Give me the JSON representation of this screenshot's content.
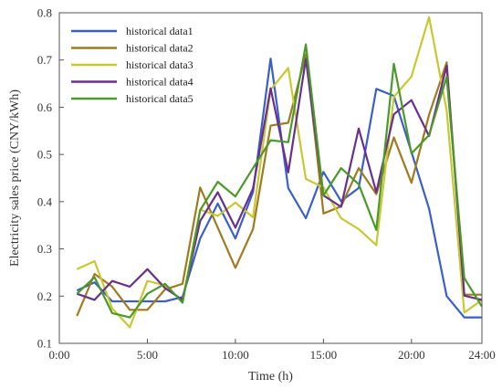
{
  "chart_data": {
    "type": "line",
    "xlabel": "Time (h)",
    "ylabel": "Electricity sales price (CNY/kWh)",
    "xlim": [
      0,
      24
    ],
    "ylim": [
      0.1,
      0.8
    ],
    "x_ticks": [
      0,
      5,
      10,
      15,
      20,
      24
    ],
    "x_tick_labels": [
      "0:00",
      "5:00",
      "10:00",
      "15:00",
      "20:00",
      "24:00"
    ],
    "y_ticks": [
      0.1,
      0.2,
      0.3,
      0.4,
      0.5,
      0.6,
      0.7,
      0.8
    ],
    "y_tick_labels": [
      "0.1",
      "0.2",
      "0.3",
      "0.4",
      "0.5",
      "0.6",
      "0.7",
      "0.8"
    ],
    "grid": false,
    "legend_position": "top-left",
    "x": [
      1,
      2,
      3,
      4,
      5,
      6,
      7,
      8,
      9,
      10,
      11,
      12,
      13,
      14,
      15,
      16,
      17,
      18,
      19,
      20,
      21,
      22,
      23,
      24
    ],
    "series": [
      {
        "name": "historical data1",
        "color": "#3a5fc8",
        "values": [
          0.212,
          0.229,
          0.189,
          0.189,
          0.189,
          0.189,
          0.198,
          0.322,
          0.396,
          0.322,
          0.42,
          0.703,
          0.429,
          0.365,
          0.463,
          0.401,
          0.429,
          0.639,
          0.624,
          0.505,
          0.385,
          0.2,
          0.155,
          0.155
        ]
      },
      {
        "name": "historical data2",
        "color": "#a07a1e",
        "values": [
          0.158,
          0.247,
          0.22,
          0.171,
          0.171,
          0.214,
          0.226,
          0.43,
          0.345,
          0.26,
          0.342,
          0.561,
          0.567,
          0.712,
          0.375,
          0.39,
          0.471,
          0.416,
          0.536,
          0.44,
          0.584,
          0.695,
          0.203,
          0.203
        ]
      },
      {
        "name": "historical data3",
        "color": "#c8c832",
        "values": [
          0.257,
          0.274,
          0.174,
          0.134,
          0.232,
          0.223,
          0.189,
          0.383,
          0.37,
          0.398,
          0.367,
          0.637,
          0.683,
          0.448,
          0.43,
          0.365,
          0.342,
          0.308,
          0.622,
          0.665,
          0.791,
          0.593,
          0.165,
          0.192
        ]
      },
      {
        "name": "historical data4",
        "color": "#6a2e8e",
        "values": [
          0.205,
          0.192,
          0.232,
          0.22,
          0.257,
          0.217,
          0.192,
          0.359,
          0.42,
          0.345,
          0.428,
          0.64,
          0.462,
          0.702,
          0.413,
          0.389,
          0.555,
          0.42,
          0.585,
          0.615,
          0.539,
          0.688,
          0.201,
          0.192
        ]
      },
      {
        "name": "historical data5",
        "color": "#4a9a2a",
        "values": [
          0.205,
          0.24,
          0.164,
          0.155,
          0.205,
          0.226,
          0.186,
          0.382,
          0.442,
          0.411,
          0.471,
          0.53,
          0.526,
          0.733,
          0.413,
          0.471,
          0.437,
          0.34,
          0.692,
          0.502,
          0.541,
          0.664,
          0.238,
          0.178
        ]
      }
    ]
  }
}
